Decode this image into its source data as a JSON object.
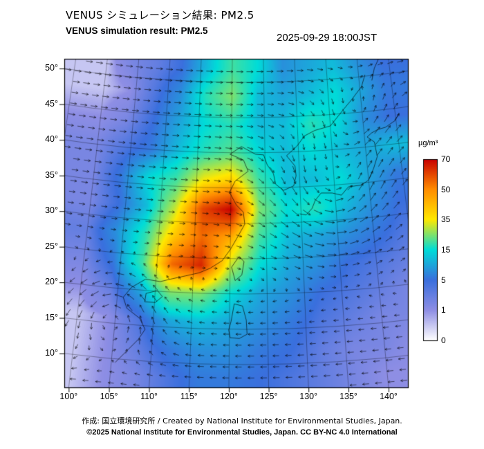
{
  "header": {
    "title_ja": "VENUS シミュレーション結果: PM2.5",
    "title_en": "VENUS simulation result: PM2.5",
    "timestamp": "2025-09-29 18:00JST"
  },
  "footer": {
    "credit": "作成: 国立環境研究所 / Created by National Institute for Environmental Studies, Japan.",
    "license": "©2025 National Institute for Environmental Studies, Japan. CC BY-NC 4.0 International"
  },
  "colorbar": {
    "unit": "µg/m³"
  },
  "axes": {
    "lat_ticks": [
      {
        "label": "50°",
        "value": 50
      },
      {
        "label": "45°",
        "value": 45
      },
      {
        "label": "40°",
        "value": 40
      },
      {
        "label": "35°",
        "value": 35
      },
      {
        "label": "30°",
        "value": 30
      },
      {
        "label": "25°",
        "value": 25
      },
      {
        "label": "20°",
        "value": 20
      },
      {
        "label": "15°",
        "value": 15
      },
      {
        "label": "10°",
        "value": 10
      }
    ],
    "lon_ticks": [
      {
        "label": "100°",
        "value": 100
      },
      {
        "label": "105°",
        "value": 105
      },
      {
        "label": "110°",
        "value": 110
      },
      {
        "label": "115°",
        "value": 115
      },
      {
        "label": "120°",
        "value": 120
      },
      {
        "label": "125°",
        "value": 125
      },
      {
        "label": "130°",
        "value": 130
      },
      {
        "label": "135°",
        "value": 135
      },
      {
        "label": "140°",
        "value": 140
      }
    ]
  },
  "chart_data": {
    "type": "heatmap",
    "title": "VENUS simulation result: PM2.5",
    "variable": "PM2.5 concentration",
    "unit": "µg/m³",
    "time": "2025-09-29 18:00JST",
    "lon_range": [
      100,
      140
    ],
    "lat_range": [
      10,
      50
    ],
    "lon": [
      100,
      104,
      108,
      112,
      116,
      120,
      124,
      128,
      132,
      136,
      140,
      144
    ],
    "lat": [
      52,
      48,
      44,
      40,
      36,
      32,
      28,
      24,
      20,
      16,
      12,
      8
    ],
    "values": [
      [
        0.5,
        2,
        3,
        5,
        12,
        20,
        15,
        8,
        10,
        12,
        8,
        5
      ],
      [
        0.5,
        1,
        4,
        8,
        18,
        25,
        12,
        10,
        12,
        15,
        10,
        6
      ],
      [
        1,
        2,
        5,
        10,
        15,
        18,
        12,
        12,
        18,
        15,
        8,
        5
      ],
      [
        2,
        4,
        6,
        12,
        18,
        22,
        15,
        12,
        15,
        12,
        10,
        12
      ],
      [
        2,
        6,
        15,
        20,
        35,
        40,
        20,
        12,
        12,
        15,
        10,
        6
      ],
      [
        2,
        5,
        12,
        30,
        60,
        70,
        25,
        15,
        18,
        12,
        8,
        5
      ],
      [
        3,
        8,
        18,
        40,
        55,
        45,
        20,
        12,
        10,
        8,
        6,
        4
      ],
      [
        2,
        6,
        20,
        55,
        65,
        30,
        15,
        10,
        8,
        5,
        4,
        3
      ],
      [
        1,
        3,
        10,
        25,
        25,
        15,
        10,
        8,
        5,
        4,
        3,
        2
      ],
      [
        0.5,
        1,
        4,
        10,
        12,
        10,
        8,
        6,
        4,
        3,
        2,
        2
      ],
      [
        0.5,
        1,
        3,
        6,
        8,
        8,
        6,
        5,
        3,
        2,
        2,
        1
      ],
      [
        0.5,
        1,
        2,
        4,
        6,
        6,
        5,
        4,
        3,
        2,
        1,
        1
      ]
    ],
    "colorscale": {
      "levels": [
        0,
        1,
        5,
        15,
        35,
        50,
        70
      ],
      "colors": [
        "#ffffff",
        "#8e8ee4",
        "#3a6fdd",
        "#00dcd8",
        "#ffe800",
        "#ff8c00",
        "#c80000"
      ]
    },
    "wind": {
      "jet": {
        "lat_transition": 22,
        "width": 8,
        "max_westerly": 8
      },
      "vortices": [
        {
          "lon": 104.5,
          "lat": 16.5,
          "radius": 4,
          "strength": 10
        },
        {
          "lon": 135.0,
          "lat": 33.5,
          "radius": 6,
          "strength": 10
        },
        {
          "lon": 139.5,
          "lat": 44.5,
          "radius": 4,
          "strength": 7
        }
      ]
    },
    "coastlines": [
      [
        [
          105.5,
          9.5
        ],
        [
          106.8,
          11.2
        ],
        [
          108.2,
          13
        ],
        [
          109,
          14.5
        ],
        [
          108.2,
          16
        ],
        [
          106.4,
          17.3
        ],
        [
          105.8,
          18.8
        ],
        [
          106.8,
          20.3
        ],
        [
          108.6,
          21.6
        ],
        [
          110.6,
          21.4
        ],
        [
          112.2,
          21.9
        ],
        [
          114,
          22.4
        ],
        [
          115.8,
          22.9
        ],
        [
          117.3,
          23.6
        ],
        [
          118.9,
          24.7
        ],
        [
          120,
          26.3
        ],
        [
          120.9,
          27.9
        ],
        [
          122,
          29.9
        ],
        [
          121.8,
          31.6
        ],
        [
          120.8,
          32.6
        ],
        [
          119.8,
          34.4
        ],
        [
          120.6,
          36
        ],
        [
          122.5,
          37.4
        ],
        [
          121.8,
          39
        ],
        [
          119.8,
          39.8
        ],
        [
          121.5,
          40.9
        ],
        [
          123.6,
          39.8
        ],
        [
          124.8,
          39.7
        ],
        [
          125.3,
          38.3
        ],
        [
          126.2,
          37
        ],
        [
          126.5,
          35.5
        ],
        [
          127.6,
          34.6
        ],
        [
          129.1,
          35.2
        ],
        [
          129.5,
          36.6
        ],
        [
          129.4,
          38
        ],
        [
          128.2,
          39.5
        ],
        [
          129.8,
          40.8
        ],
        [
          131,
          42.2
        ],
        [
          132.6,
          42.9
        ],
        [
          135,
          43.4
        ],
        [
          137.2,
          45.6
        ],
        [
          138.6,
          46.9
        ],
        [
          140.3,
          48.6
        ],
        [
          141,
          50.2
        ]
      ],
      [
        [
          129.8,
          31.2
        ],
        [
          130.7,
          31
        ],
        [
          131.6,
          31.9
        ],
        [
          132.1,
          33
        ],
        [
          133,
          34
        ],
        [
          134.6,
          33.9
        ],
        [
          135.9,
          33.5
        ],
        [
          137,
          34.6
        ],
        [
          138.9,
          34.7
        ],
        [
          140,
          35.3
        ],
        [
          140.9,
          36.9
        ],
        [
          141.6,
          38.5
        ],
        [
          141.4,
          40.6
        ],
        [
          140.4,
          41.4
        ],
        [
          141.1,
          41.9
        ],
        [
          142.1,
          42.3
        ],
        [
          143.3,
          42.5
        ],
        [
          144.9,
          43.3
        ],
        [
          145.6,
          44.3
        ]
      ],
      [
        [
          120.7,
          21.9
        ],
        [
          121.6,
          22.7
        ],
        [
          121.9,
          24.6
        ],
        [
          121.2,
          25.3
        ],
        [
          120.2,
          23.8
        ],
        [
          120.7,
          21.9
        ]
      ],
      [
        [
          108.7,
          18.4
        ],
        [
          110.1,
          18.4
        ],
        [
          111,
          19.3
        ],
        [
          110.3,
          20.1
        ],
        [
          108.8,
          19.6
        ],
        [
          108.7,
          18.4
        ]
      ],
      [
        [
          120.1,
          13.8
        ],
        [
          121.3,
          13.7
        ],
        [
          122.3,
          14.3
        ],
        [
          122.2,
          16.3
        ],
        [
          121.7,
          18.3
        ],
        [
          120.6,
          18.6
        ],
        [
          120.2,
          16.1
        ],
        [
          119.9,
          14.9
        ],
        [
          120.1,
          13.8
        ]
      ],
      [
        [
          142,
          49.3
        ],
        [
          142.6,
          51
        ],
        [
          143.4,
          52.2
        ]
      ]
    ]
  }
}
